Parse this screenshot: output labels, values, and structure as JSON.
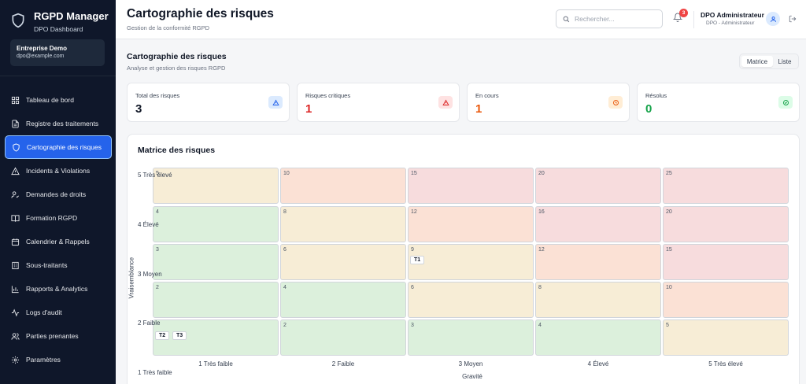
{
  "app": {
    "name": "RGPD Manager",
    "subtitle": "DPO Dashboard"
  },
  "org": {
    "name": "Entreprise Demo",
    "email": "dpo@example.com"
  },
  "sidebar": {
    "items": [
      {
        "label": "Tableau de bord",
        "icon": "dashboard-icon"
      },
      {
        "label": "Registre des traitements",
        "icon": "document-icon"
      },
      {
        "label": "Cartographie des risques",
        "icon": "shield-icon",
        "active": true
      },
      {
        "label": "Incidents & Violations",
        "icon": "warning-icon"
      },
      {
        "label": "Demandes de droits",
        "icon": "user-check-icon"
      },
      {
        "label": "Formation RGPD",
        "icon": "book-icon"
      },
      {
        "label": "Calendrier & Rappels",
        "icon": "calendar-icon"
      },
      {
        "label": "Sous-traitants",
        "icon": "building-icon"
      },
      {
        "label": "Rapports & Analytics",
        "icon": "bar-chart-icon"
      },
      {
        "label": "Logs d'audit",
        "icon": "activity-icon"
      },
      {
        "label": "Parties prenantes",
        "icon": "users-icon"
      },
      {
        "label": "Paramètres",
        "icon": "gear-icon"
      }
    ]
  },
  "header": {
    "title": "Cartographie des risques",
    "subtitle": "Gestion de la conformité RGPD",
    "search_placeholder": "Rechercher...",
    "notifications_count": "3",
    "user_name": "DPO Administrateur",
    "user_role": "DPO - Administrateur"
  },
  "section": {
    "title": "Cartographie des risques",
    "subtitle": "Analyse et gestion des risques RGPD",
    "view_matrix": "Matrice",
    "view_list": "Liste"
  },
  "stats": [
    {
      "label": "Total des risques",
      "value": "3",
      "color": "#111827",
      "icon": "triangle-warning-icon",
      "icon_bg": "#dbeafe",
      "icon_color": "#2563eb"
    },
    {
      "label": "Risques critiques",
      "value": "1",
      "color": "#dc2626",
      "icon": "triangle-warning-icon",
      "icon_bg": "#fee2e2",
      "icon_color": "#dc2626"
    },
    {
      "label": "En cours",
      "value": "1",
      "color": "#ea580c",
      "icon": "clock-icon",
      "icon_bg": "#ffedd5",
      "icon_color": "#ea580c"
    },
    {
      "label": "Résolus",
      "value": "0",
      "color": "#16a34a",
      "icon": "check-circle-icon",
      "icon_bg": "#dcfce7",
      "icon_color": "#16a34a"
    }
  ],
  "matrix": {
    "title": "Matrice des risques",
    "y_title": "Vraisemblance",
    "x_title": "Gravité",
    "y_labels": [
      "5 Très élevé",
      "4 Élevé",
      "3 Moyen",
      "2 Faible",
      "1 Très faible"
    ],
    "x_labels": [
      "1 Très faible",
      "2 Faible",
      "3 Moyen",
      "4 Élevé",
      "5 Très élevé"
    ],
    "colors": {
      "low": "#dcf0dc",
      "medium": "#f7edd6",
      "high": "#fbe1d5",
      "critical": "#f7dcdd"
    },
    "rows": [
      [
        "5",
        "10",
        "15",
        "20",
        "25"
      ],
      [
        "4",
        "8",
        "12",
        "16",
        "20"
      ],
      [
        "3",
        "6",
        "9",
        "12",
        "15"
      ],
      [
        "2",
        "4",
        "6",
        "8",
        "10"
      ],
      [
        "",
        "2",
        "3",
        "4",
        "5"
      ]
    ],
    "levels": [
      [
        "medium",
        "high",
        "critical",
        "critical",
        "critical"
      ],
      [
        "low",
        "medium",
        "high",
        "critical",
        "critical"
      ],
      [
        "low",
        "medium",
        "medium",
        "high",
        "critical"
      ],
      [
        "low",
        "low",
        "medium",
        "medium",
        "high"
      ],
      [
        "low",
        "low",
        "low",
        "low",
        "medium"
      ]
    ],
    "tags": [
      {
        "row": 2,
        "col": 2,
        "labels": [
          "T1"
        ]
      },
      {
        "row": 4,
        "col": 0,
        "labels": [
          "T2",
          "T3"
        ]
      }
    ]
  }
}
